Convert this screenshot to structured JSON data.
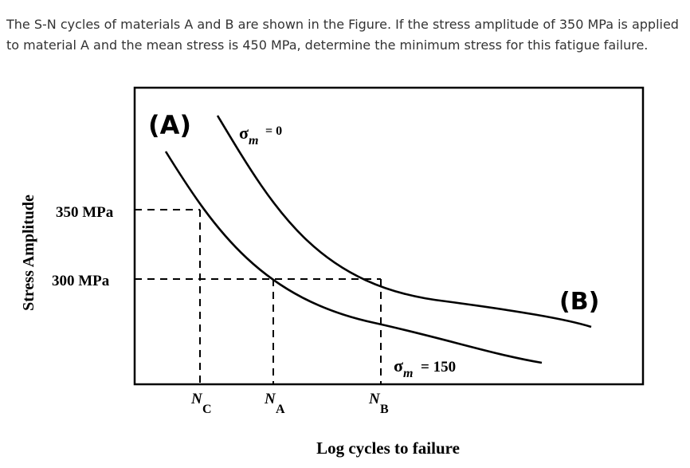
{
  "question": "The S-N cycles of materials A and B are shown in the Figure. If the stress amplitude of 350 MPa is applied to material A and the mean stress is 450 MPa, determine the minimum stress for this fatigue failure.",
  "chart_data": {
    "type": "line",
    "title": "",
    "xlabel": "Log cycles to failure",
    "ylabel": "Stress Amplitude",
    "grid": false,
    "y_levels": [
      "350 MPa",
      "300 MPa"
    ],
    "x_markers": [
      {
        "sym": "N",
        "sub": "C"
      },
      {
        "sym": "N",
        "sub": "A"
      },
      {
        "sym": "N",
        "sub": "B"
      }
    ],
    "series": [
      {
        "name": "σm = 0"
      },
      {
        "name": "σm = 150"
      }
    ],
    "panel_labels": {
      "curve_a": "(A)",
      "curve_b": "(B)"
    },
    "series_labels": {
      "upper": {
        "sigma": "σ",
        "sub": "m",
        "eq": "= 0"
      },
      "lower": {
        "sigma": "σ",
        "sub": "m",
        "eq": "= 150"
      }
    },
    "colors": {
      "ink": "#000000",
      "text": "#333333"
    }
  }
}
